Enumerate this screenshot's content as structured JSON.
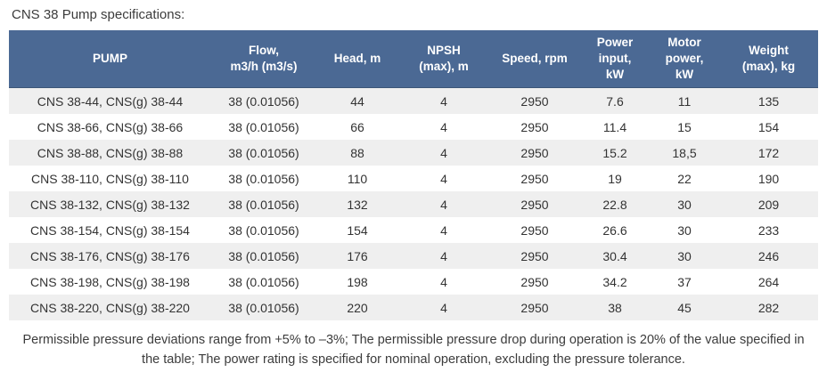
{
  "title": "CNS 38 Pump specifications:",
  "table": {
    "columns": [
      "PUMP",
      "Flow,\nm3/h (m3/s)",
      "Head, m",
      "NPSH\n(max), m",
      "Speed, rpm",
      "Power\ninput,\nkW",
      "Motor\npower,\nkW",
      "Weight\n(max), kg"
    ],
    "rows": [
      [
        "CNS 38-44, CNS(g) 38-44",
        "38 (0.01056)",
        "44",
        "4",
        "2950",
        "7.6",
        "11",
        "135"
      ],
      [
        "CNS 38-66, CNS(g) 38-66",
        "38 (0.01056)",
        "66",
        "4",
        "2950",
        "11.4",
        "15",
        "154"
      ],
      [
        "CNS 38-88, CNS(g) 38-88",
        "38 (0.01056)",
        "88",
        "4",
        "2950",
        "15.2",
        "18,5",
        "172"
      ],
      [
        "CNS 38-110, CNS(g) 38-110",
        "38 (0.01056)",
        "110",
        "4",
        "2950",
        "19",
        "22",
        "190"
      ],
      [
        "CNS 38-132, CNS(g) 38-132",
        "38 (0.01056)",
        "132",
        "4",
        "2950",
        "22.8",
        "30",
        "209"
      ],
      [
        "CNS 38-154, CNS(g) 38-154",
        "38 (0.01056)",
        "154",
        "4",
        "2950",
        "26.6",
        "30",
        "233"
      ],
      [
        "CNS 38-176, CNS(g) 38-176",
        "38 (0.01056)",
        "176",
        "4",
        "2950",
        "30.4",
        "30",
        "246"
      ],
      [
        "CNS 38-198, CNS(g) 38-198",
        "38 (0.01056)",
        "198",
        "4",
        "2950",
        "34.2",
        "37",
        "264"
      ],
      [
        "CNS 38-220, CNS(g) 38-220",
        "38 (0.01056)",
        "220",
        "4",
        "2950",
        "38",
        "45",
        "282"
      ]
    ]
  },
  "footnote": "Permissible pressure deviations range from +5% to –3%; The permissible pressure drop during operation is 20% of the value specified in the table; The power rating is specified for nominal operation, excluding the pressure tolerance.",
  "colors": {
    "header_background": "#4b6994",
    "header_text": "#ffffff",
    "row_stripe": "#efefef",
    "body_text": "#333333"
  }
}
